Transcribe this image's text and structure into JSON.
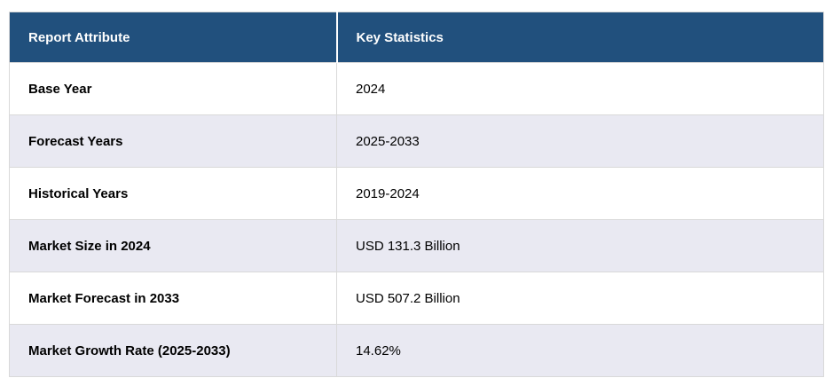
{
  "table": {
    "columns": [
      {
        "label": "Report Attribute"
      },
      {
        "label": "Key Statistics"
      }
    ],
    "rows": [
      {
        "attribute": "Base Year",
        "value": "2024"
      },
      {
        "attribute": "Forecast Years",
        "value": "2025-2033"
      },
      {
        "attribute": "Historical Years",
        "value": "2019-2024"
      },
      {
        "attribute": "Market Size in 2024",
        "value": "USD 131.3 Billion"
      },
      {
        "attribute": "Market Forecast in 2033",
        "value": "USD 507.2 Billion"
      },
      {
        "attribute": "Market Growth Rate (2025-2033)",
        "value": "14.62%"
      }
    ],
    "colors": {
      "header_bg": "#21507D",
      "header_text": "#FFFFFF",
      "row_bg": "#FFFFFF",
      "row_alt_bg": "#E9E9F2",
      "border": "#D9D9D9",
      "text": "#000000",
      "header_divider": "#FFFFFF"
    }
  },
  "chart_data": {
    "type": "table",
    "title": "",
    "columns": [
      "Report Attribute",
      "Key Statistics"
    ],
    "rows": [
      [
        "Base Year",
        "2024"
      ],
      [
        "Forecast Years",
        "2025-2033"
      ],
      [
        "Historical Years",
        "2019-2024"
      ],
      [
        "Market Size in 2024",
        "USD 131.3 Billion"
      ],
      [
        "Market Forecast in 2033",
        "USD 507.2 Billion"
      ],
      [
        "Market Growth Rate (2025-2033)",
        "14.62%"
      ]
    ]
  }
}
